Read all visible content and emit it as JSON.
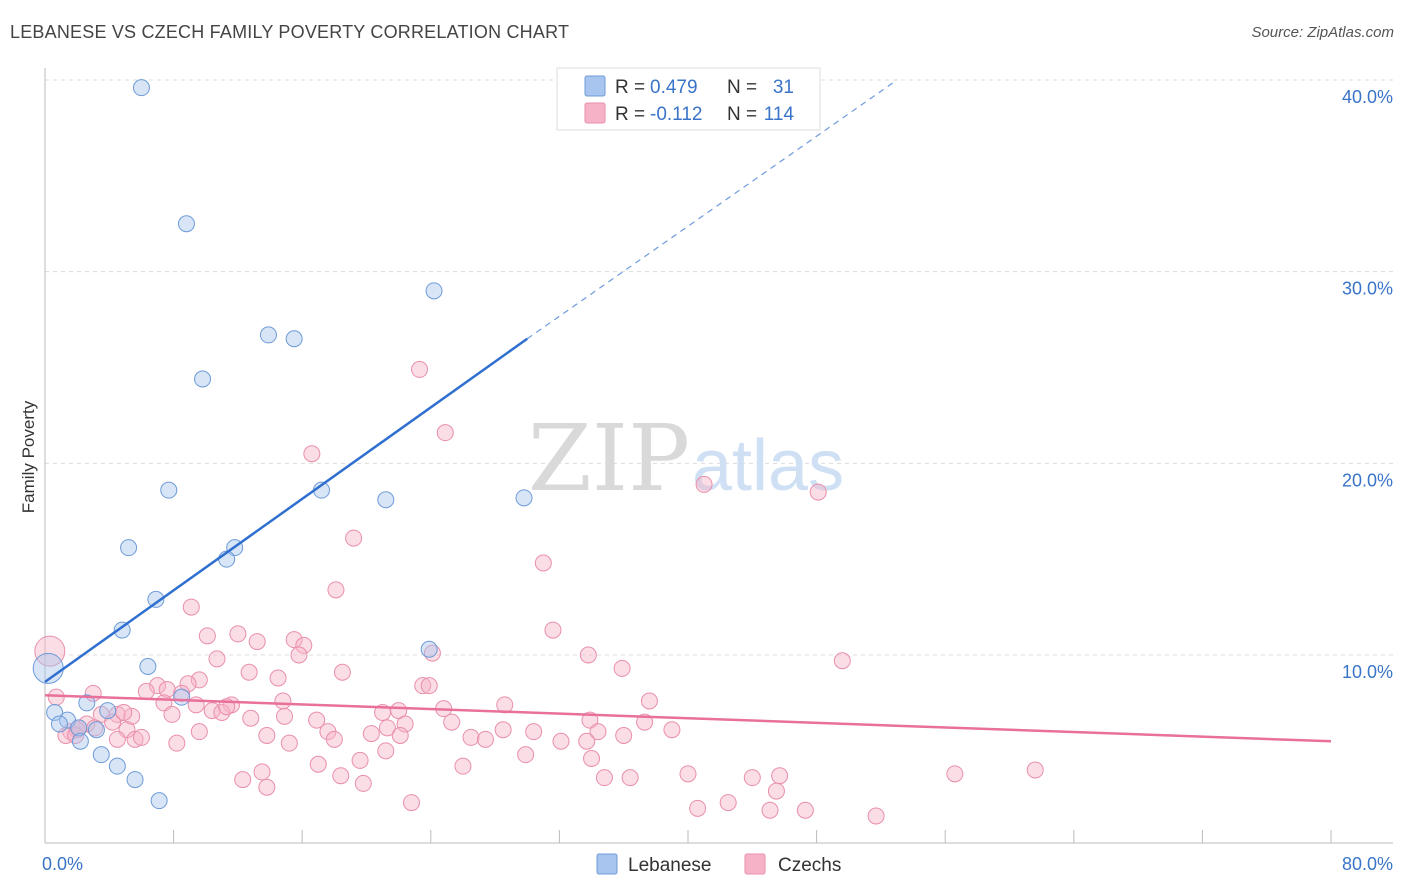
{
  "title": "LEBANESE VS CZECH FAMILY POVERTY CORRELATION CHART",
  "source": "Source: ZipAtlas.com",
  "watermark": {
    "part1": "ZIP",
    "part2": "atlas"
  },
  "chart_data": {
    "type": "scatter",
    "ylabel": "Family Poverty",
    "xlim": [
      0,
      80
    ],
    "ylim": [
      0,
      40
    ],
    "x_tick_labels": [
      {
        "value": 0,
        "label": "0.0%"
      },
      {
        "value": 80,
        "label": "80.0%"
      }
    ],
    "y_tick_labels": [
      {
        "value": 10,
        "label": "10.0%"
      },
      {
        "value": 20,
        "label": "20.0%"
      },
      {
        "value": 30,
        "label": "30.0%"
      },
      {
        "value": 40,
        "label": "40.0%"
      }
    ],
    "x_minor_ticks": [
      0,
      8,
      16,
      24,
      32,
      40,
      48,
      56,
      64,
      72,
      80
    ],
    "grid": true,
    "legend_position": "bottom-center",
    "stats_box": [
      {
        "r_label": "R = ",
        "r_value": "0.479",
        "n_label": "N = ",
        "n_value": "31",
        "color": "#a7c5ee"
      },
      {
        "r_label": "R = ",
        "r_value": "-0.112",
        "n_label": "N = ",
        "n_value": "114",
        "color": "#f6b3c7"
      }
    ],
    "series": [
      {
        "name": "Lebanese",
        "color": "#a7c5ee",
        "stroke": "#6e9bd8",
        "line_color": "#2f6fcf",
        "trend": {
          "x0": 0,
          "y0": 8.6,
          "x1": 30,
          "y1": 26.5,
          "dash_to_x": 53,
          "dash_to_y": 40.0
        },
        "points": [
          [
            6.0,
            39.6
          ],
          [
            8.8,
            32.5
          ],
          [
            24.2,
            29.0
          ],
          [
            15.5,
            26.5
          ],
          [
            13.9,
            26.7
          ],
          [
            9.8,
            24.4
          ],
          [
            7.7,
            18.6
          ],
          [
            17.2,
            18.6
          ],
          [
            21.2,
            18.1
          ],
          [
            29.8,
            18.2
          ],
          [
            5.2,
            15.6
          ],
          [
            11.8,
            15.6
          ],
          [
            11.3,
            15.0
          ],
          [
            6.9,
            12.9
          ],
          [
            4.8,
            11.3
          ],
          [
            23.9,
            10.3
          ],
          [
            6.4,
            9.4
          ],
          [
            8.5,
            7.8
          ],
          [
            2.6,
            7.5
          ],
          [
            3.9,
            7.1
          ],
          [
            0.6,
            7.0
          ],
          [
            1.4,
            6.6
          ],
          [
            0.9,
            6.4
          ],
          [
            2.1,
            6.2
          ],
          [
            3.2,
            6.1
          ],
          [
            2.2,
            5.5
          ],
          [
            3.5,
            4.8
          ],
          [
            4.5,
            4.2
          ],
          [
            5.6,
            3.5
          ],
          [
            7.1,
            2.4
          ],
          [
            0.2,
            9.3
          ]
        ]
      },
      {
        "name": "Czechs",
        "color": "#f6b3c7",
        "stroke": "#e98fab",
        "line_color": "#e8709a",
        "trend": {
          "x0": 0,
          "y0": 7.9,
          "x1": 80,
          "y1": 5.5
        },
        "points": [
          [
            23.3,
            24.9
          ],
          [
            24.9,
            21.6
          ],
          [
            16.6,
            20.5
          ],
          [
            41.0,
            18.9
          ],
          [
            48.1,
            18.5
          ],
          [
            19.2,
            16.1
          ],
          [
            31.0,
            14.8
          ],
          [
            18.1,
            13.4
          ],
          [
            9.1,
            12.5
          ],
          [
            31.6,
            11.3
          ],
          [
            10.1,
            11.0
          ],
          [
            12.0,
            11.1
          ],
          [
            13.2,
            10.7
          ],
          [
            15.5,
            10.8
          ],
          [
            16.1,
            10.5
          ],
          [
            15.8,
            10.0
          ],
          [
            24.1,
            10.1
          ],
          [
            33.8,
            10.0
          ],
          [
            10.7,
            9.8
          ],
          [
            49.6,
            9.7
          ],
          [
            35.9,
            9.3
          ],
          [
            12.7,
            9.1
          ],
          [
            18.5,
            9.1
          ],
          [
            14.5,
            8.8
          ],
          [
            9.6,
            8.7
          ],
          [
            8.9,
            8.5
          ],
          [
            7.0,
            8.4
          ],
          [
            6.3,
            8.1
          ],
          [
            7.6,
            8.2
          ],
          [
            8.5,
            8.0
          ],
          [
            3.0,
            8.0
          ],
          [
            23.5,
            8.4
          ],
          [
            23.9,
            8.4
          ],
          [
            0.7,
            7.8
          ],
          [
            7.4,
            7.5
          ],
          [
            14.8,
            7.6
          ],
          [
            37.6,
            7.6
          ],
          [
            28.6,
            7.4
          ],
          [
            11.6,
            7.4
          ],
          [
            10.4,
            7.1
          ],
          [
            11.0,
            7.0
          ],
          [
            11.3,
            7.3
          ],
          [
            21.0,
            7.0
          ],
          [
            22.0,
            7.1
          ],
          [
            24.8,
            7.2
          ],
          [
            3.5,
            6.9
          ],
          [
            4.5,
            6.9
          ],
          [
            7.9,
            6.9
          ],
          [
            5.4,
            6.8
          ],
          [
            12.8,
            6.7
          ],
          [
            14.9,
            6.8
          ],
          [
            16.9,
            6.6
          ],
          [
            21.3,
            6.2
          ],
          [
            22.4,
            6.4
          ],
          [
            25.3,
            6.5
          ],
          [
            33.9,
            6.6
          ],
          [
            37.3,
            6.5
          ],
          [
            39.0,
            6.1
          ],
          [
            2.6,
            6.4
          ],
          [
            3.1,
            6.2
          ],
          [
            4.2,
            6.5
          ],
          [
            5.1,
            6.1
          ],
          [
            1.6,
            6.0
          ],
          [
            2.0,
            6.1
          ],
          [
            1.3,
            5.8
          ],
          [
            1.9,
            5.8
          ],
          [
            4.5,
            5.6
          ],
          [
            5.6,
            5.6
          ],
          [
            8.2,
            5.4
          ],
          [
            9.6,
            6.0
          ],
          [
            13.8,
            5.8
          ],
          [
            15.2,
            5.4
          ],
          [
            17.6,
            6.0
          ],
          [
            18.0,
            5.6
          ],
          [
            22.1,
            5.8
          ],
          [
            26.5,
            5.7
          ],
          [
            28.5,
            6.1
          ],
          [
            30.4,
            6.0
          ],
          [
            34.4,
            6.0
          ],
          [
            29.9,
            4.8
          ],
          [
            32.1,
            5.5
          ],
          [
            33.7,
            5.5
          ],
          [
            21.2,
            5.0
          ],
          [
            19.6,
            4.5
          ],
          [
            17.0,
            4.3
          ],
          [
            34.0,
            4.6
          ],
          [
            18.4,
            3.7
          ],
          [
            19.8,
            3.3
          ],
          [
            26.0,
            4.2
          ],
          [
            13.5,
            3.9
          ],
          [
            12.3,
            3.5
          ],
          [
            13.8,
            3.1
          ],
          [
            34.8,
            3.6
          ],
          [
            36.4,
            3.6
          ],
          [
            40.0,
            3.8
          ],
          [
            44.0,
            3.6
          ],
          [
            45.7,
            3.7
          ],
          [
            45.5,
            2.9
          ],
          [
            22.8,
            2.3
          ],
          [
            40.6,
            2.0
          ],
          [
            42.5,
            2.3
          ],
          [
            45.1,
            1.9
          ],
          [
            47.3,
            1.9
          ],
          [
            51.7,
            1.6
          ],
          [
            56.6,
            3.8
          ],
          [
            61.6,
            4.0
          ],
          [
            0.3,
            10.2
          ],
          [
            2.1,
            6.2
          ],
          [
            6.0,
            5.7
          ],
          [
            4.9,
            7.0
          ],
          [
            9.4,
            7.4
          ],
          [
            27.4,
            5.6
          ],
          [
            20.3,
            5.9
          ],
          [
            36.0,
            5.8
          ]
        ]
      }
    ]
  }
}
